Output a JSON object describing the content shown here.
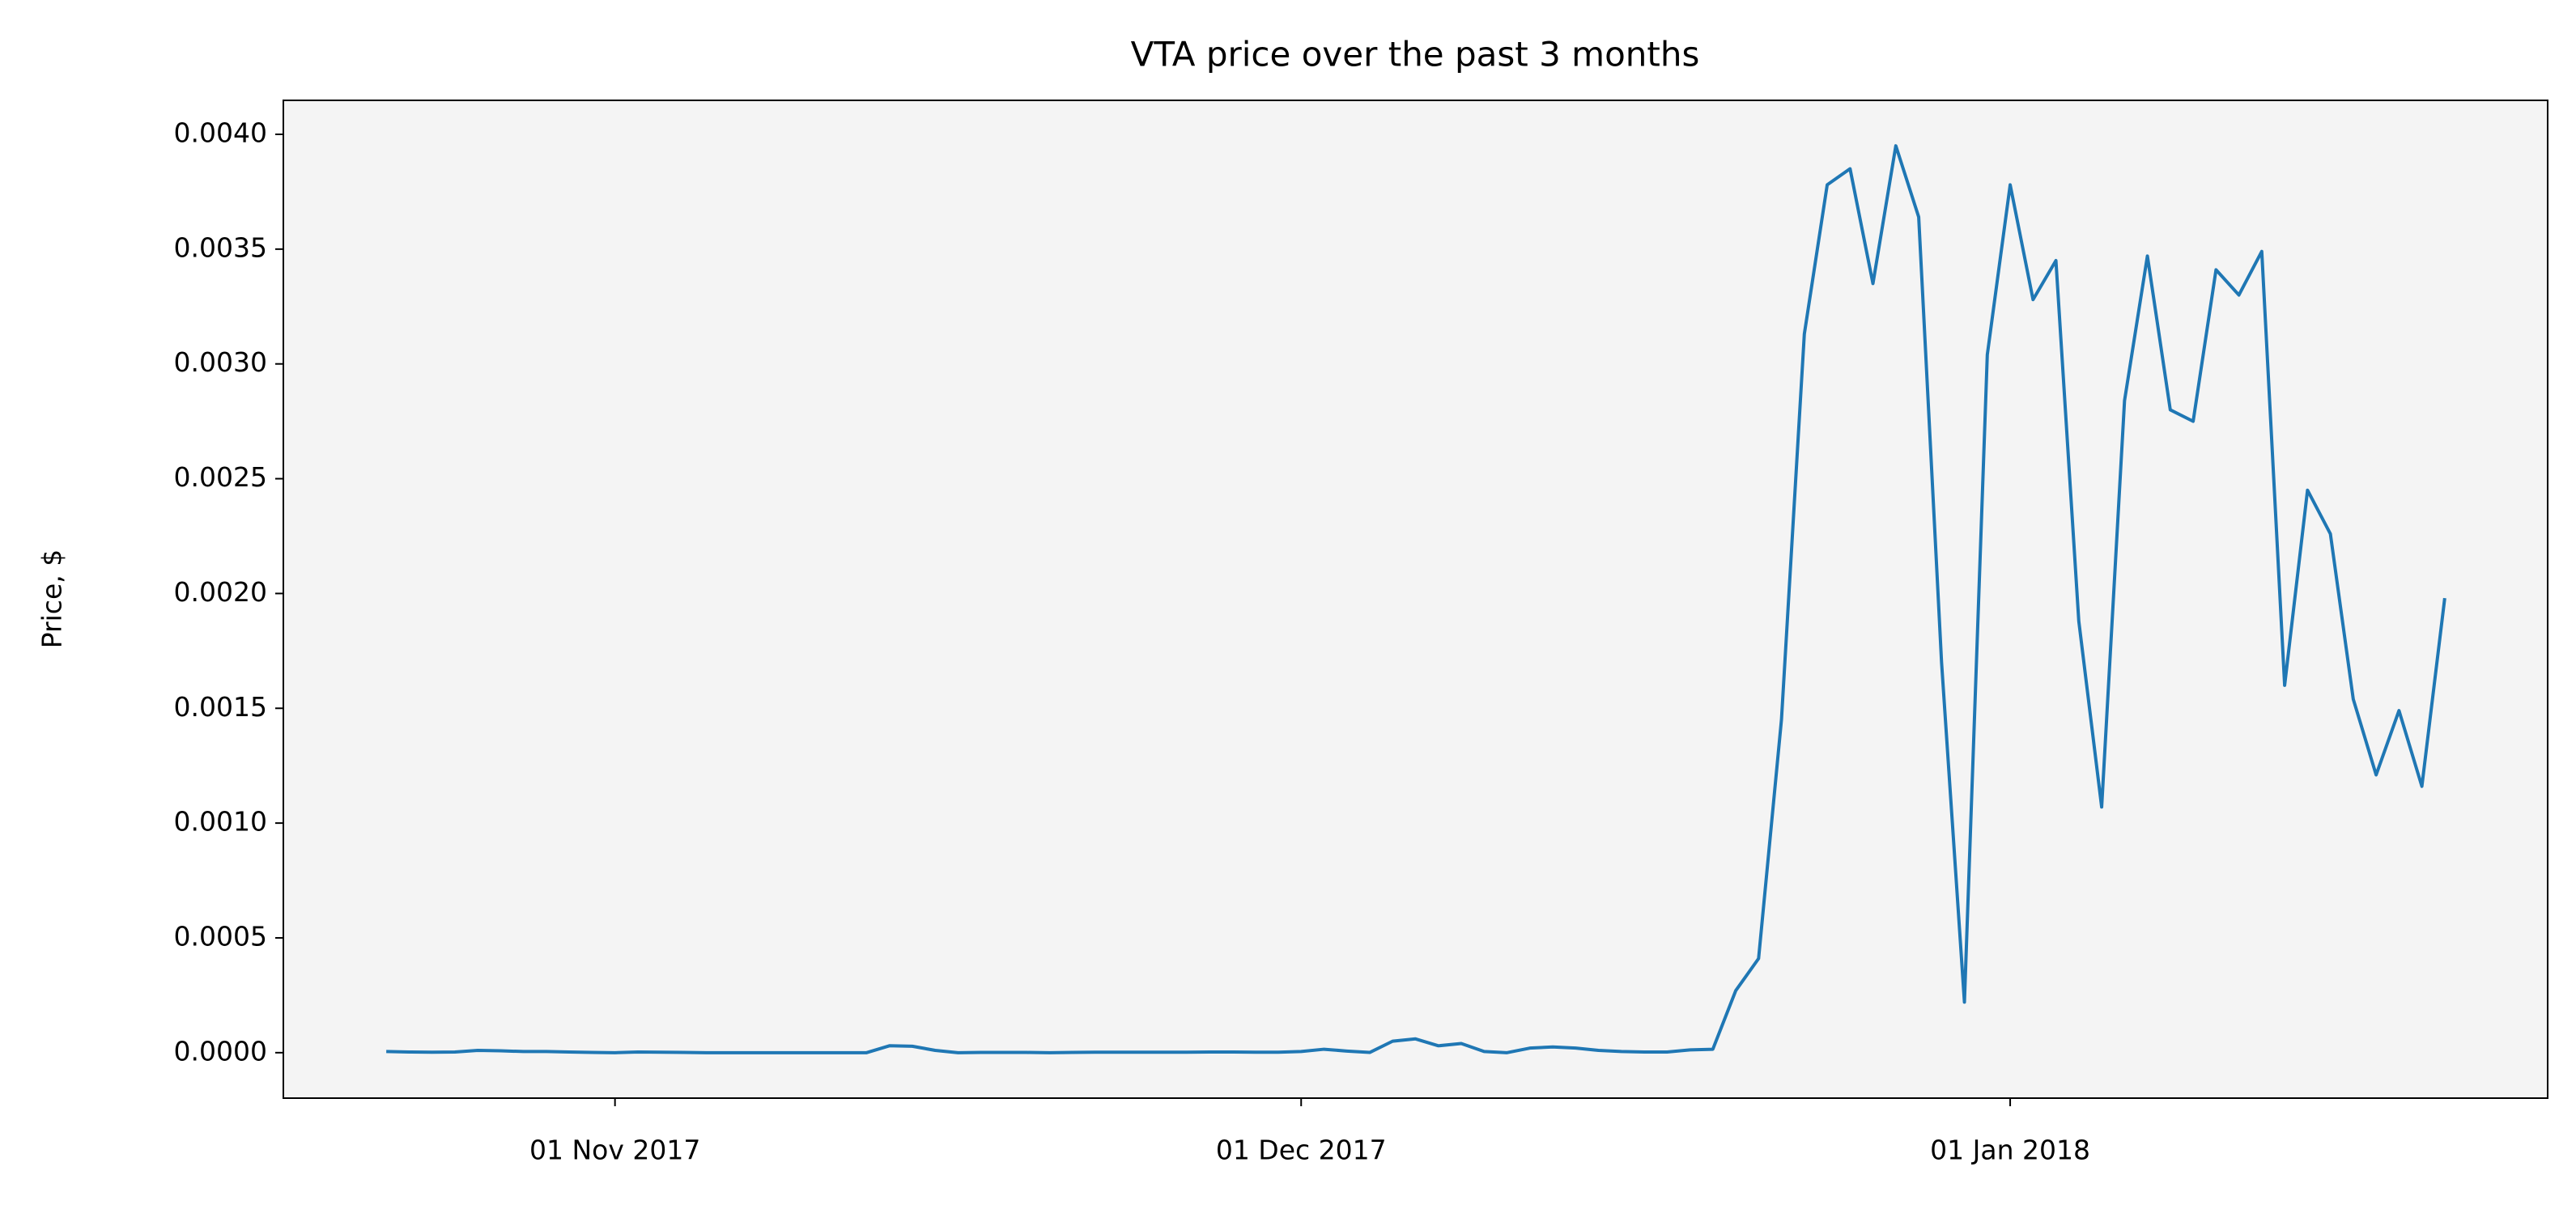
{
  "chart_data": {
    "type": "line",
    "title": "VTA price over the past 3 months",
    "y_label": "Price, $",
    "x": [
      "2017-10-22",
      "2017-10-23",
      "2017-10-24",
      "2017-10-25",
      "2017-10-26",
      "2017-10-27",
      "2017-10-28",
      "2017-10-29",
      "2017-10-30",
      "2017-10-31",
      "2017-11-01",
      "2017-11-02",
      "2017-11-03",
      "2017-11-04",
      "2017-11-05",
      "2017-11-06",
      "2017-11-07",
      "2017-11-08",
      "2017-11-09",
      "2017-11-10",
      "2017-11-11",
      "2017-11-12",
      "2017-11-13",
      "2017-11-14",
      "2017-11-15",
      "2017-11-16",
      "2017-11-17",
      "2017-11-18",
      "2017-11-19",
      "2017-11-20",
      "2017-11-21",
      "2017-11-22",
      "2017-11-23",
      "2017-11-24",
      "2017-11-25",
      "2017-11-26",
      "2017-11-27",
      "2017-11-28",
      "2017-11-29",
      "2017-11-30",
      "2017-12-01",
      "2017-12-02",
      "2017-12-03",
      "2017-12-04",
      "2017-12-05",
      "2017-12-06",
      "2017-12-07",
      "2017-12-08",
      "2017-12-09",
      "2017-12-10",
      "2017-12-11",
      "2017-12-12",
      "2017-12-13",
      "2017-12-14",
      "2017-12-15",
      "2017-12-16",
      "2017-12-17",
      "2017-12-18",
      "2017-12-19",
      "2017-12-20",
      "2017-12-21",
      "2017-12-22",
      "2017-12-23",
      "2017-12-24",
      "2017-12-25",
      "2017-12-26",
      "2017-12-27",
      "2017-12-28",
      "2017-12-29",
      "2017-12-30",
      "2017-12-31",
      "2018-01-01",
      "2018-01-02",
      "2018-01-03",
      "2018-01-04",
      "2018-01-05",
      "2018-01-06",
      "2018-01-07",
      "2018-01-08",
      "2018-01-09",
      "2018-01-10",
      "2018-01-11",
      "2018-01-12",
      "2018-01-13",
      "2018-01-14",
      "2018-01-15",
      "2018-01-16",
      "2018-01-17",
      "2018-01-18",
      "2018-01-19",
      "2018-01-20"
    ],
    "series": [
      {
        "color": "#1f77b4",
        "values": [
          5e-06,
          3e-06,
          2e-06,
          3e-06,
          1e-05,
          8e-06,
          5e-06,
          5e-06,
          3e-06,
          1e-06,
          0.0,
          3e-06,
          2e-06,
          1e-06,
          0.0,
          0.0,
          0.0,
          0.0,
          0.0,
          0.0,
          0.0,
          0.0,
          3e-05,
          2.8e-05,
          1e-05,
          0.0,
          1e-06,
          1e-06,
          1e-06,
          0.0,
          1e-06,
          2e-06,
          2e-06,
          2e-06,
          2e-06,
          2e-06,
          3e-06,
          3e-06,
          2e-06,
          2e-06,
          5e-06,
          1.5e-05,
          7e-06,
          1e-06,
          5e-05,
          6e-05,
          3e-05,
          4e-05,
          5e-06,
          0.0,
          2e-05,
          2.5e-05,
          2e-05,
          1e-05,
          5e-06,
          3e-06,
          3e-06,
          1.2e-05,
          1.5e-05,
          0.00027,
          0.00041,
          0.00145,
          0.00313,
          0.00378,
          0.00385,
          0.00335,
          0.00395,
          0.00364,
          0.0017,
          0.00022,
          0.00304,
          0.00378,
          0.00328,
          0.00345,
          0.00188,
          0.00107,
          0.00284,
          0.00347,
          0.0028,
          0.00275,
          0.00341,
          0.0033,
          0.00349,
          0.0016,
          0.00245,
          0.00226,
          0.00154,
          0.00121,
          0.00149,
          0.00116,
          0.00198
        ]
      }
    ],
    "xlim": [
      "2017-10-17T12:00",
      "2018-01-24T12:00"
    ],
    "xticks": [
      {
        "value": "2017-11-01",
        "label": "01 Nov 2017"
      },
      {
        "value": "2017-12-01",
        "label": "01 Dec 2017"
      },
      {
        "value": "2018-01-01",
        "label": "01 Jan 2018"
      }
    ],
    "ylim": [
      -0.000198,
      0.004148
    ],
    "yticks": [
      {
        "value": 0,
        "label": "0.0000"
      },
      {
        "value": 0.0005,
        "label": "0.0005"
      },
      {
        "value": 0.001,
        "label": "0.0010"
      },
      {
        "value": 0.0015,
        "label": "0.0015"
      },
      {
        "value": 0.002,
        "label": "0.0020"
      },
      {
        "value": 0.0025,
        "label": "0.0025"
      },
      {
        "value": 0.003,
        "label": "0.0030"
      },
      {
        "value": 0.0035,
        "label": "0.0035"
      },
      {
        "value": 0.004,
        "label": "0.0040"
      }
    ],
    "background": "#f4f4f4"
  }
}
